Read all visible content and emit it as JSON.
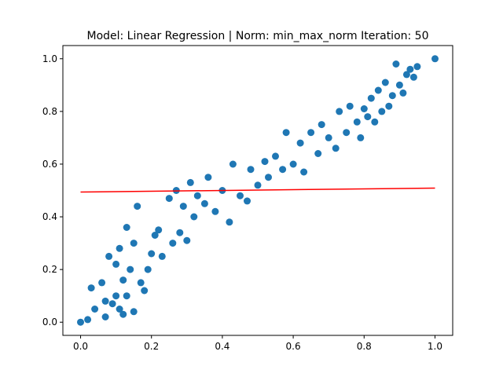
{
  "chart_data": {
    "type": "scatter",
    "title": "Model: Linear Regression | Norm: min_max_norm  Iteration: 50",
    "xlabel": "",
    "ylabel": "",
    "xlim": [
      -0.05,
      1.05
    ],
    "ylim": [
      -0.05,
      1.05
    ],
    "x_ticks": [
      "0.0",
      "0.2",
      "0.4",
      "0.6",
      "0.8",
      "1.0"
    ],
    "y_ticks": [
      "0.0",
      "0.2",
      "0.4",
      "0.6",
      "0.8",
      "1.0"
    ],
    "grid": false,
    "legend": "none",
    "colors": {
      "points": "#1f77b4",
      "fit_line": "#ff0000",
      "axes": "#000000"
    },
    "series": [
      {
        "kind": "points",
        "x": [
          0.0,
          0.02,
          0.03,
          0.04,
          0.06,
          0.07,
          0.07,
          0.08,
          0.09,
          0.1,
          0.1,
          0.11,
          0.11,
          0.12,
          0.12,
          0.13,
          0.13,
          0.14,
          0.15,
          0.15,
          0.16,
          0.17,
          0.18,
          0.19,
          0.2,
          0.21,
          0.22,
          0.23,
          0.25,
          0.26,
          0.27,
          0.28,
          0.29,
          0.3,
          0.31,
          0.32,
          0.33,
          0.35,
          0.36,
          0.38,
          0.4,
          0.42,
          0.43,
          0.45,
          0.47,
          0.48,
          0.5,
          0.52,
          0.53,
          0.55,
          0.57,
          0.58,
          0.6,
          0.62,
          0.63,
          0.65,
          0.67,
          0.68,
          0.7,
          0.72,
          0.73,
          0.75,
          0.76,
          0.78,
          0.79,
          0.8,
          0.81,
          0.82,
          0.83,
          0.84,
          0.85,
          0.86,
          0.87,
          0.88,
          0.89,
          0.9,
          0.91,
          0.92,
          0.93,
          0.94,
          0.95,
          1.0
        ],
        "y": [
          0.0,
          0.01,
          0.13,
          0.05,
          0.15,
          0.08,
          0.02,
          0.25,
          0.07,
          0.1,
          0.22,
          0.05,
          0.28,
          0.16,
          0.03,
          0.36,
          0.1,
          0.2,
          0.04,
          0.3,
          0.44,
          0.15,
          0.12,
          0.2,
          0.26,
          0.33,
          0.35,
          0.25,
          0.47,
          0.3,
          0.5,
          0.34,
          0.44,
          0.31,
          0.53,
          0.4,
          0.48,
          0.45,
          0.55,
          0.42,
          0.5,
          0.38,
          0.6,
          0.48,
          0.46,
          0.58,
          0.52,
          0.61,
          0.55,
          0.63,
          0.58,
          0.72,
          0.6,
          0.68,
          0.57,
          0.72,
          0.64,
          0.75,
          0.7,
          0.66,
          0.8,
          0.72,
          0.82,
          0.76,
          0.7,
          0.81,
          0.78,
          0.85,
          0.76,
          0.88,
          0.8,
          0.91,
          0.82,
          0.86,
          0.98,
          0.9,
          0.87,
          0.94,
          0.96,
          0.93,
          0.97,
          1.0
        ]
      },
      {
        "kind": "line",
        "x": [
          0.0,
          1.0
        ],
        "y": [
          0.494,
          0.509
        ]
      }
    ]
  }
}
